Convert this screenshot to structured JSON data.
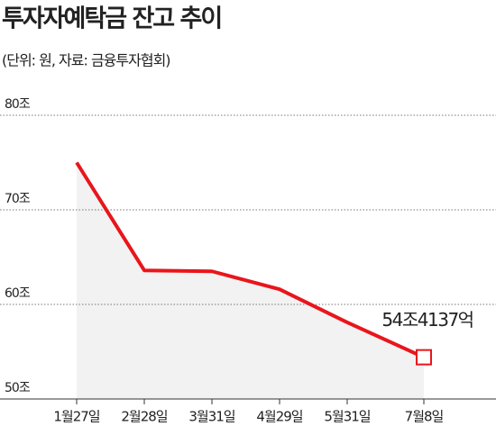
{
  "chart_data": {
    "type": "line",
    "title": "투자자예탁금 잔고 추이",
    "subtitle": "(단위: 원, 자료: 금융투자협회)",
    "categories": [
      "1월27일",
      "2월28일",
      "3월31일",
      "4월29일",
      "5월31일",
      "7월8일"
    ],
    "series": [
      {
        "color": "#e8161c",
        "values": [
          75,
          63.6,
          63.5,
          61.6,
          58.1,
          54.4137
        ],
        "value_labels": [
          null,
          null,
          null,
          null,
          null,
          "54조4137억"
        ]
      }
    ],
    "ylim": [
      50,
      80
    ],
    "yticks": [
      {
        "value": 50,
        "label": "50조"
      },
      {
        "value": 60,
        "label": "60조"
      },
      {
        "value": 70,
        "label": "70조"
      },
      {
        "value": 80,
        "label": "80조"
      }
    ],
    "grid": true
  }
}
